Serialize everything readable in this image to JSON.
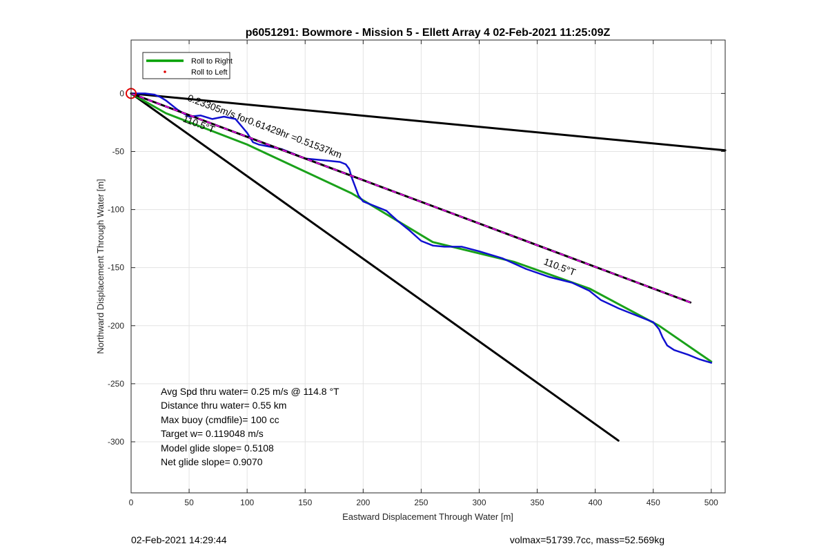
{
  "chart_data": {
    "type": "line",
    "title": "p6051291: Bowmore - Mission 5 - Ellett Array 4 02-Feb-2021 11:25:09Z",
    "xlabel": "Eastward Displacement Through Water [m]",
    "ylabel": "Northward Displacement Through Water [m]",
    "xlim": [
      0,
      512
    ],
    "ylim": [
      -344,
      46
    ],
    "xticks": [
      0,
      50,
      100,
      150,
      200,
      250,
      300,
      350,
      400,
      450,
      500
    ],
    "yticks": [
      0,
      -50,
      -100,
      -150,
      -200,
      -250,
      -300
    ],
    "grid": true,
    "legend": {
      "position": "top-left",
      "entries": [
        {
          "label": "Roll to Right",
          "color": "#00a000",
          "style": "line"
        },
        {
          "label": "Roll to Left",
          "color": "#e00000",
          "style": "dot"
        }
      ]
    },
    "series": [
      {
        "name": "Roll to Right",
        "color": "#1aa11a",
        "x": [
          0,
          30,
          100,
          190,
          260,
          330,
          395,
          455,
          500
        ],
        "y": [
          0,
          -17,
          -44,
          -86,
          -128,
          -145,
          -168,
          -200,
          -231
        ]
      },
      {
        "color": "#1010d0",
        "x": [
          0,
          12,
          20,
          25,
          30,
          40,
          50,
          60,
          70,
          80,
          90,
          95,
          100,
          105,
          110,
          120,
          130,
          140,
          150,
          160,
          170,
          180,
          185,
          188,
          190,
          193,
          196,
          200,
          205,
          210,
          220,
          230,
          240,
          250,
          260,
          270,
          285,
          300,
          320,
          340,
          360,
          380,
          395,
          405,
          420,
          440,
          450,
          455,
          458,
          462,
          468,
          480,
          490,
          500
        ],
        "y": [
          0,
          0,
          -1,
          -3,
          -6,
          -14,
          -20,
          -19,
          -22,
          -20,
          -22,
          -28,
          -34,
          -42,
          -44,
          -46,
          -48,
          -52,
          -56,
          -57,
          -58,
          -59,
          -61,
          -65,
          -72,
          -80,
          -88,
          -93,
          -95,
          -97,
          -101,
          -110,
          -118,
          -127,
          -131,
          -132,
          -132,
          -136,
          -142,
          -151,
          -158,
          -163,
          -170,
          -178,
          -185,
          -193,
          -197,
          -203,
          -210,
          -217,
          -221,
          -225,
          -229,
          -232
        ]
      },
      {
        "color": "#000000",
        "dashColor": "#e000e0",
        "x": [
          0,
          482
        ],
        "y": [
          0,
          -180
        ]
      },
      {
        "color": "#000000",
        "x": [
          0,
          512
        ],
        "y": [
          0,
          -49
        ]
      },
      {
        "color": "#000000",
        "x": [
          0,
          420
        ],
        "y": [
          0,
          -299
        ]
      }
    ],
    "origin_marker": {
      "x": 0,
      "y": 0,
      "color": "#e00000"
    },
    "annotations": [
      {
        "text": "0.23305m/s for0.61429hr =0.51537km",
        "x": 48,
        "y": -6,
        "angle": 20.7
      },
      {
        "text": "110.5°T",
        "x": 44,
        "y": -24,
        "angle": 20.7
      },
      {
        "text": "110.5°T",
        "x": 355,
        "y": -147,
        "angle": 20.7
      }
    ],
    "stats": [
      "Avg Spd thru water=  0.25 m/s @ 114.8 °T",
      "Distance thru water=  0.55 km",
      "Max buoy (cmdfile)= 100 cc",
      "Target w= 0.119048 m/s",
      "Model glide slope= 0.5108",
      "Net glide slope= 0.9070"
    ]
  },
  "footer": {
    "timestamp": "02-Feb-2021 14:29:44",
    "summary": "volmax=51739.7cc, mass=52.569kg"
  }
}
